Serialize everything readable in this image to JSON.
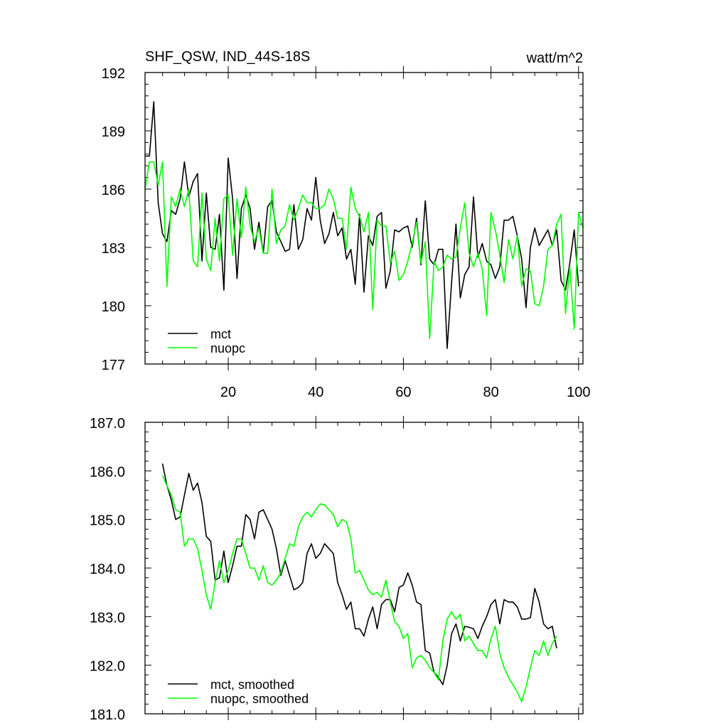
{
  "chart_data": [
    {
      "type": "line",
      "title": "SHF_QSW, IND_44S-18S",
      "units": "watt/m^2",
      "xlim": [
        1,
        101
      ],
      "ylim": [
        177,
        192
      ],
      "xticks": [
        20,
        40,
        60,
        80,
        100
      ],
      "yticks": [
        177,
        180,
        183,
        186,
        189,
        192
      ],
      "xtick_labels": [
        "20",
        "40",
        "60",
        "80",
        "100"
      ],
      "ytick_labels": [
        "177",
        "180",
        "183",
        "186",
        "189",
        "192"
      ],
      "legend": [
        "mct",
        "nuopc"
      ],
      "legend_position": "bottom-left",
      "series": [
        {
          "name": "mct",
          "color": "#000000",
          "x_start": 1,
          "values": [
            187.7,
            187.7,
            190.5,
            185.3,
            183.7,
            183.3,
            184.9,
            184.7,
            185.5,
            187.4,
            185.6,
            186.4,
            186.8,
            182.3,
            185.8,
            183.0,
            182.9,
            184.7,
            180.8,
            187.6,
            185.5,
            181.4,
            185.0,
            185.7,
            185.0,
            182.9,
            184.3,
            182.7,
            185.1,
            185.4,
            183.8,
            183.3,
            182.8,
            182.9,
            185.2,
            182.9,
            183.4,
            185.0,
            184.4,
            186.6,
            184.4,
            183.2,
            183.7,
            184.8,
            183.6,
            184.0,
            182.4,
            182.9,
            181.1,
            184.7,
            180.7,
            183.6,
            183.1,
            184.6,
            184.8,
            180.9,
            181.8,
            183.9,
            183.8,
            184.0,
            184.1,
            183.0,
            184.5,
            182.1,
            185.4,
            182.4,
            182.1,
            182.9,
            182.9,
            177.8,
            181.2,
            184.2,
            180.4,
            181.6,
            182.0,
            185.6,
            182.5,
            183.2,
            182.3,
            182.1,
            181.4,
            182.0,
            184.4,
            184.4,
            184.6,
            183.6,
            182.4,
            179.9,
            183.0,
            184.0,
            183.1,
            183.5,
            183.9,
            183.1,
            183.9,
            181.3,
            180.8,
            182.2,
            183.9,
            181.0
          ]
        },
        {
          "name": "nuopc",
          "color": "#00ff00",
          "x_start": 1,
          "values": [
            186.0,
            187.4,
            187.4,
            186.2,
            187.4,
            181.0,
            185.6,
            185.1,
            186.0,
            185.1,
            186.0,
            182.3,
            182.0,
            185.8,
            182.4,
            181.8,
            184.5,
            182.3,
            185.5,
            185.7,
            182.6,
            185.5,
            183.5,
            186.1,
            184.1,
            183.3,
            184.0,
            182.7,
            182.7,
            186.0,
            183.2,
            183.9,
            184.1,
            185.2,
            184.4,
            185.0,
            185.7,
            185.3,
            185.3,
            185.0,
            185.0,
            185.2,
            186.0,
            185.5,
            184.5,
            184.5,
            182.9,
            186.1,
            185.0,
            184.6,
            183.8,
            184.8,
            179.8,
            184.4,
            184.1,
            184.1,
            182.2,
            182.8,
            181.3,
            181.6,
            182.3,
            183.2,
            184.3,
            182.2,
            183.3,
            178.3,
            182.3,
            181.8,
            182.0,
            182.6,
            182.4,
            182.5,
            184.0,
            185.3,
            182.7,
            182.0,
            182.7,
            181.9,
            179.5,
            184.8,
            183.9,
            182.6,
            181.2,
            183.4,
            182.4,
            183.6,
            181.0,
            181.9,
            181.8,
            180.1,
            180.0,
            181.0,
            182.9,
            183.1,
            184.2,
            184.7,
            179.6,
            182.0,
            178.8,
            184.8,
            184.0
          ]
        }
      ]
    },
    {
      "type": "line",
      "title": "",
      "units": "",
      "xlim": [
        1,
        101
      ],
      "ylim": [
        181.0,
        187.0
      ],
      "xticks": [
        20,
        40,
        60,
        80,
        100
      ],
      "yticks": [
        181.0,
        182.0,
        183.0,
        184.0,
        185.0,
        186.0,
        187.0
      ],
      "xtick_labels": [],
      "ytick_labels": [
        "181.0",
        "182.0",
        "183.0",
        "184.0",
        "185.0",
        "186.0",
        "187.0"
      ],
      "legend": [
        "mct, smoothed",
        "nuopc, smoothed"
      ],
      "legend_position": "bottom-left",
      "series": [
        {
          "name": "mct, smoothed",
          "color": "#000000",
          "x_start": 5,
          "values": [
            186.15,
            185.7,
            185.4,
            185.0,
            185.05,
            185.5,
            185.95,
            185.6,
            185.75,
            185.35,
            184.65,
            184.55,
            183.75,
            183.8,
            184.35,
            183.7,
            184.05,
            184.45,
            184.45,
            185.1,
            185.0,
            184.6,
            185.15,
            185.2,
            185.0,
            184.8,
            184.4,
            183.85,
            184.15,
            183.85,
            183.55,
            183.6,
            183.7,
            184.3,
            184.5,
            184.2,
            184.3,
            184.5,
            184.4,
            184.3,
            183.7,
            183.45,
            183.15,
            183.3,
            182.75,
            182.75,
            182.6,
            182.95,
            183.2,
            182.75,
            183.25,
            183.35,
            183.35,
            183.1,
            183.6,
            183.65,
            183.9,
            183.65,
            183.3,
            183.25,
            182.3,
            182.25,
            181.85,
            181.75,
            181.6,
            182.0,
            182.65,
            182.85,
            182.5,
            182.8,
            182.78,
            182.75,
            182.55,
            182.8,
            183.0,
            183.25,
            183.35,
            182.85,
            183.35,
            183.3,
            183.3,
            183.2,
            182.95,
            182.95,
            182.98,
            183.58,
            183.3,
            182.85,
            182.75,
            182.8,
            182.35
          ]
        },
        {
          "name": "nuopc, smoothed",
          "color": "#00ff00",
          "x_start": 5,
          "values": [
            185.9,
            185.7,
            185.5,
            185.2,
            185.15,
            184.45,
            184.6,
            184.6,
            184.4,
            183.95,
            183.45,
            183.15,
            183.7,
            184.15,
            183.7,
            183.95,
            184.3,
            184.6,
            184.6,
            184.3,
            184.0,
            184.0,
            183.75,
            184.05,
            183.7,
            183.65,
            183.75,
            183.9,
            184.2,
            184.5,
            184.45,
            184.85,
            185.05,
            185.15,
            185.05,
            185.2,
            185.32,
            185.3,
            185.2,
            185.1,
            184.85,
            185.0,
            184.95,
            184.6,
            183.9,
            183.95,
            183.75,
            183.55,
            183.45,
            183.5,
            183.4,
            183.75,
            183.3,
            182.9,
            182.8,
            182.55,
            182.65,
            181.95,
            182.15,
            182.2,
            182.1,
            181.95,
            181.85,
            181.7,
            182.5,
            182.95,
            183.1,
            182.95,
            183.05,
            182.5,
            182.6,
            182.45,
            182.3,
            182.3,
            182.15,
            182.55,
            182.8,
            182.25,
            181.95,
            181.75,
            181.6,
            181.45,
            181.25,
            181.55,
            181.95,
            182.3,
            182.2,
            182.5,
            182.2,
            182.45,
            182.6
          ]
        }
      ]
    }
  ]
}
